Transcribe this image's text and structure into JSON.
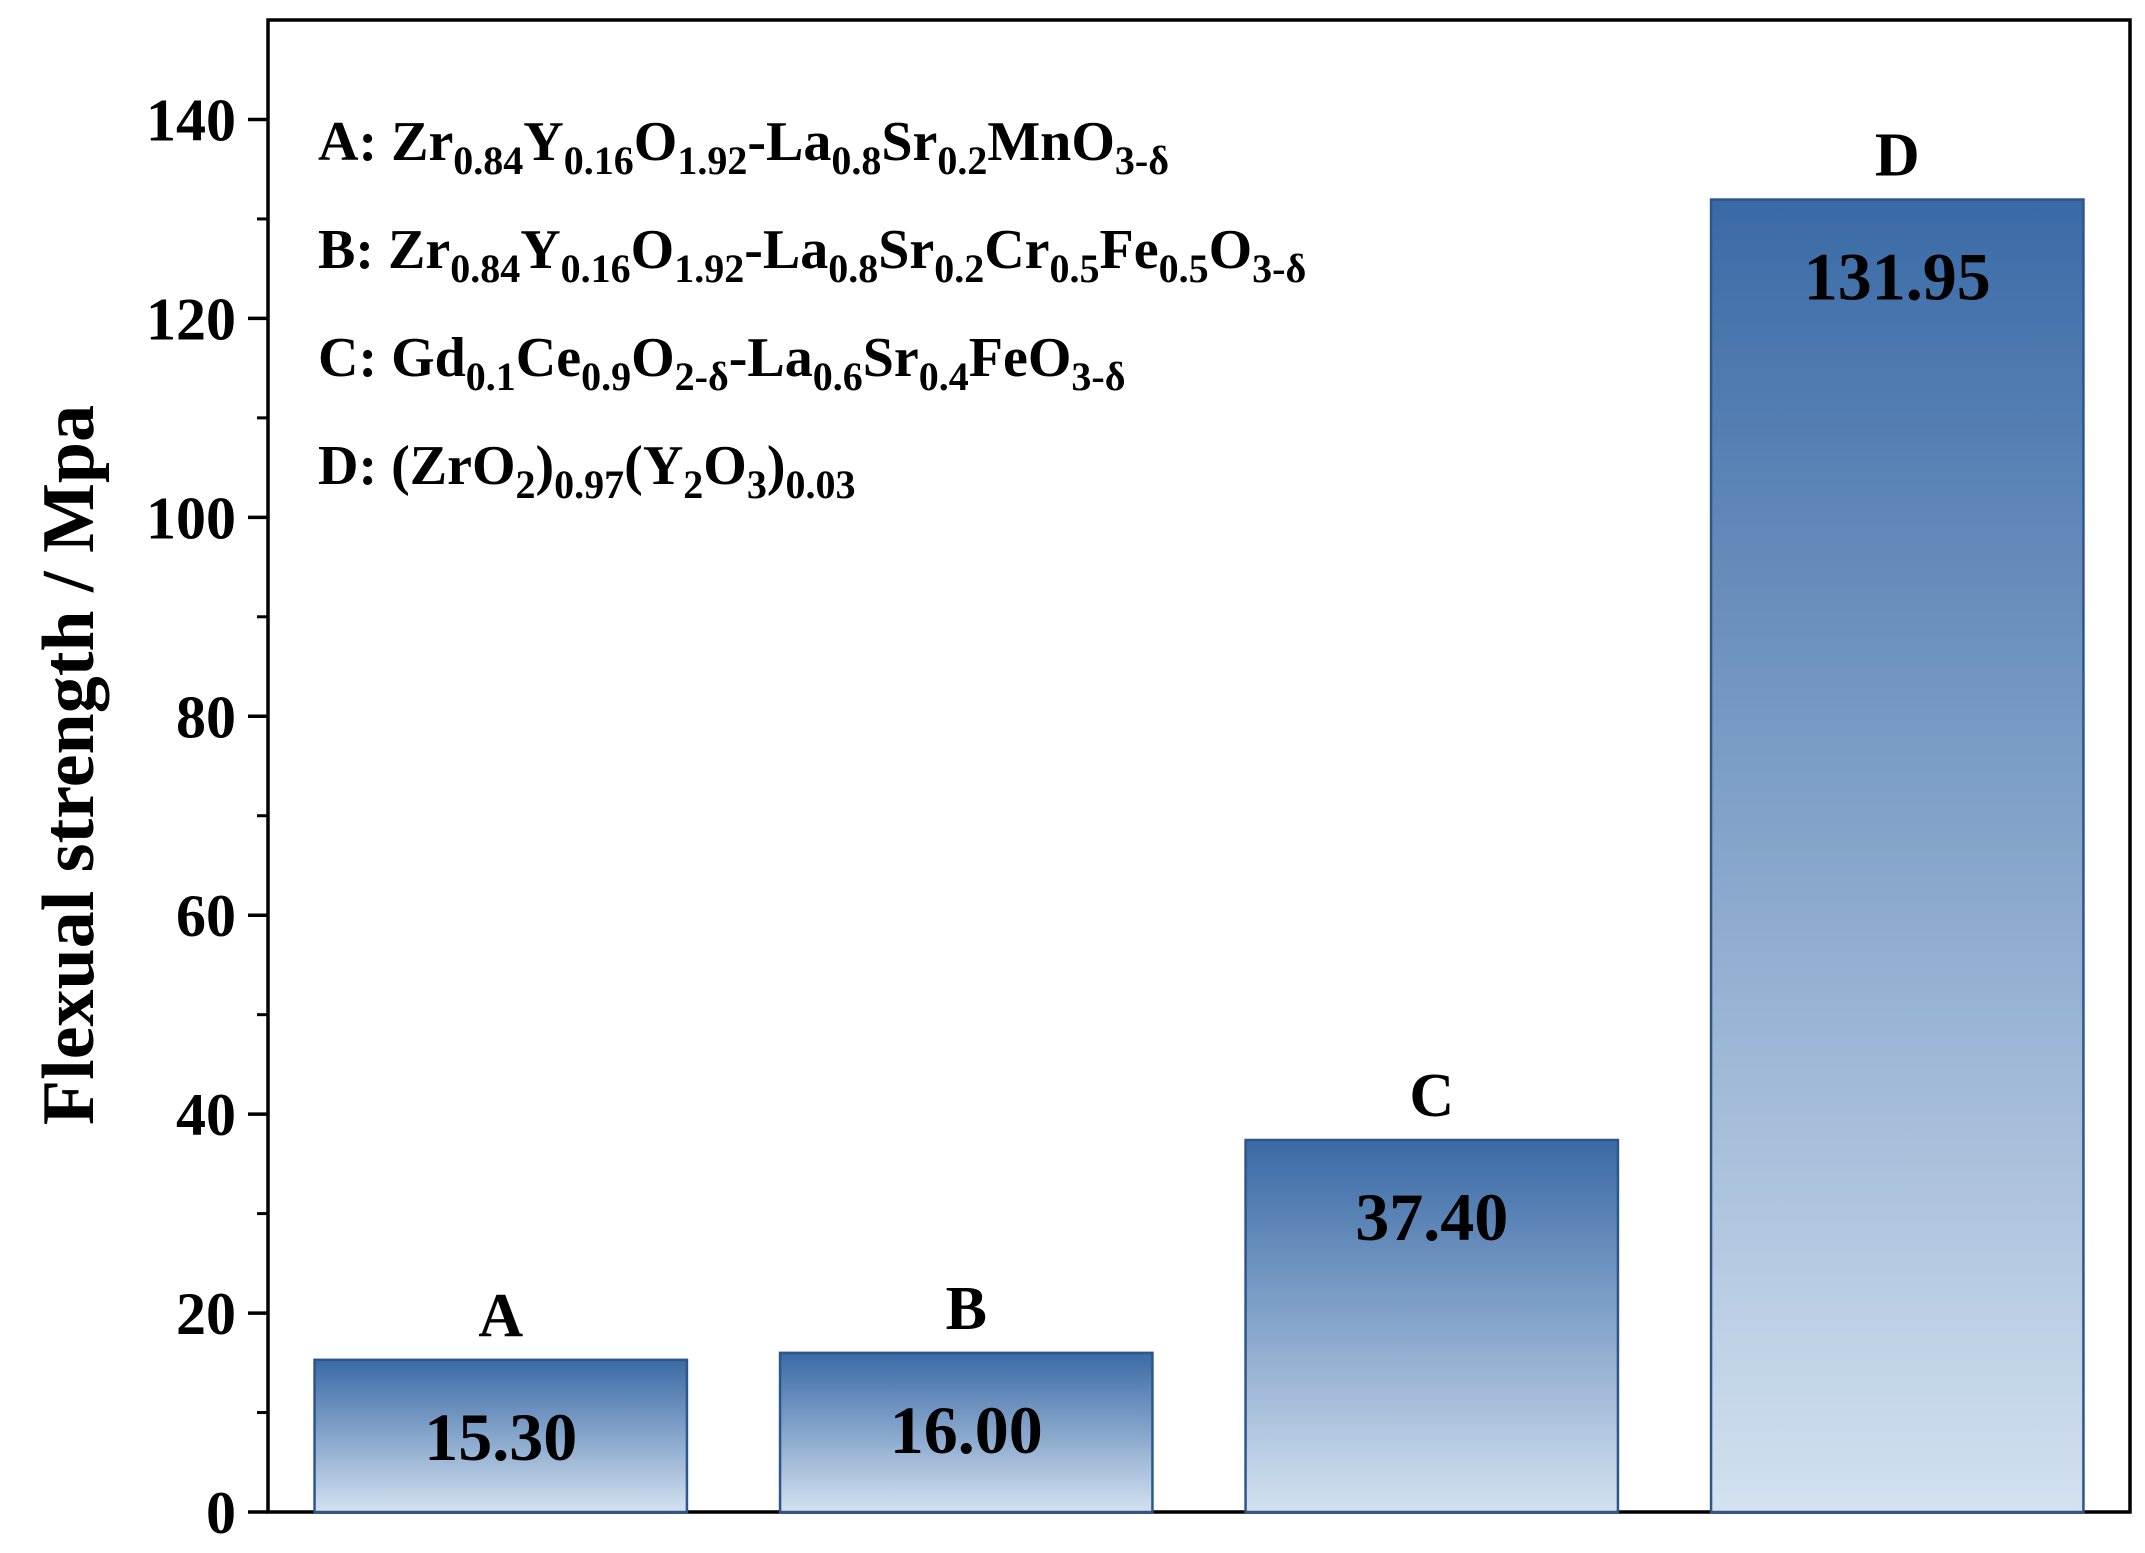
{
  "chart_data": {
    "type": "bar",
    "title": "",
    "xlabel": "",
    "ylabel": "Flexual strength / Mpa",
    "ylim": [
      0,
      150
    ],
    "y_ticks": [
      0,
      20,
      40,
      60,
      80,
      100,
      120,
      140
    ],
    "y_minor_step": 10,
    "grid": false,
    "categories": [
      "A",
      "B",
      "C",
      "D"
    ],
    "values": [
      15.3,
      16.0,
      37.4,
      131.95
    ],
    "value_labels": [
      "15.30",
      "16.00",
      "37.40",
      "131.95"
    ],
    "bar_gradient": {
      "top_color": "#3a6aa6",
      "bottom_color": "#d3e1f0",
      "border_color": "#2e568c"
    },
    "legend_placement": "top-left",
    "legend_entries": [
      {
        "id": "A",
        "label": "A: Zr0.84Y0.16O1.92-La0.8Sr0.2MnO3-δ",
        "parts": [
          {
            "t": "A: Zr",
            "s": false
          },
          {
            "t": "0.84",
            "s": true
          },
          {
            "t": "Y",
            "s": false
          },
          {
            "t": "0.16",
            "s": true
          },
          {
            "t": "O",
            "s": false
          },
          {
            "t": "1.92",
            "s": true
          },
          {
            "t": "-La",
            "s": false
          },
          {
            "t": "0.8",
            "s": true
          },
          {
            "t": "Sr",
            "s": false
          },
          {
            "t": "0.2",
            "s": true
          },
          {
            "t": "MnO",
            "s": false
          },
          {
            "t": "3-δ",
            "s": true
          }
        ]
      },
      {
        "id": "B",
        "label": "B: Zr0.84Y0.16O1.92-La0.8Sr0.2Cr0.5Fe0.5O3-δ",
        "parts": [
          {
            "t": "B: Zr",
            "s": false
          },
          {
            "t": "0.84",
            "s": true
          },
          {
            "t": "Y",
            "s": false
          },
          {
            "t": "0.16",
            "s": true
          },
          {
            "t": "O",
            "s": false
          },
          {
            "t": "1.92",
            "s": true
          },
          {
            "t": "-La",
            "s": false
          },
          {
            "t": "0.8",
            "s": true
          },
          {
            "t": "Sr",
            "s": false
          },
          {
            "t": "0.2",
            "s": true
          },
          {
            "t": "Cr",
            "s": false
          },
          {
            "t": "0.5",
            "s": true
          },
          {
            "t": "Fe",
            "s": false
          },
          {
            "t": "0.5",
            "s": true
          },
          {
            "t": "O",
            "s": false
          },
          {
            "t": "3-δ",
            "s": true
          }
        ]
      },
      {
        "id": "C",
        "label": "C: Gd0.1Ce0.9O2-δ-La0.6Sr0.4FeO3-δ",
        "parts": [
          {
            "t": "C: Gd",
            "s": false
          },
          {
            "t": "0.1",
            "s": true
          },
          {
            "t": "Ce",
            "s": false
          },
          {
            "t": "0.9",
            "s": true
          },
          {
            "t": "O",
            "s": false
          },
          {
            "t": "2-δ",
            "s": true
          },
          {
            "t": "-La",
            "s": false
          },
          {
            "t": "0.6",
            "s": true
          },
          {
            "t": "Sr",
            "s": false
          },
          {
            "t": "0.4",
            "s": true
          },
          {
            "t": "FeO",
            "s": false
          },
          {
            "t": "3-δ",
            "s": true
          }
        ]
      },
      {
        "id": "D",
        "label": "D: (ZrO2)0.97(Y2O3)0.03",
        "parts": [
          {
            "t": "D: (ZrO",
            "s": false
          },
          {
            "t": "2",
            "s": true
          },
          {
            "t": ")",
            "s": false
          },
          {
            "t": "0.97",
            "s": true
          },
          {
            "t": "(Y",
            "s": false
          },
          {
            "t": "2",
            "s": true
          },
          {
            "t": "O",
            "s": false
          },
          {
            "t": "3",
            "s": true
          },
          {
            "t": ")",
            "s": false
          },
          {
            "t": "0.03",
            "s": true
          }
        ]
      }
    ]
  }
}
